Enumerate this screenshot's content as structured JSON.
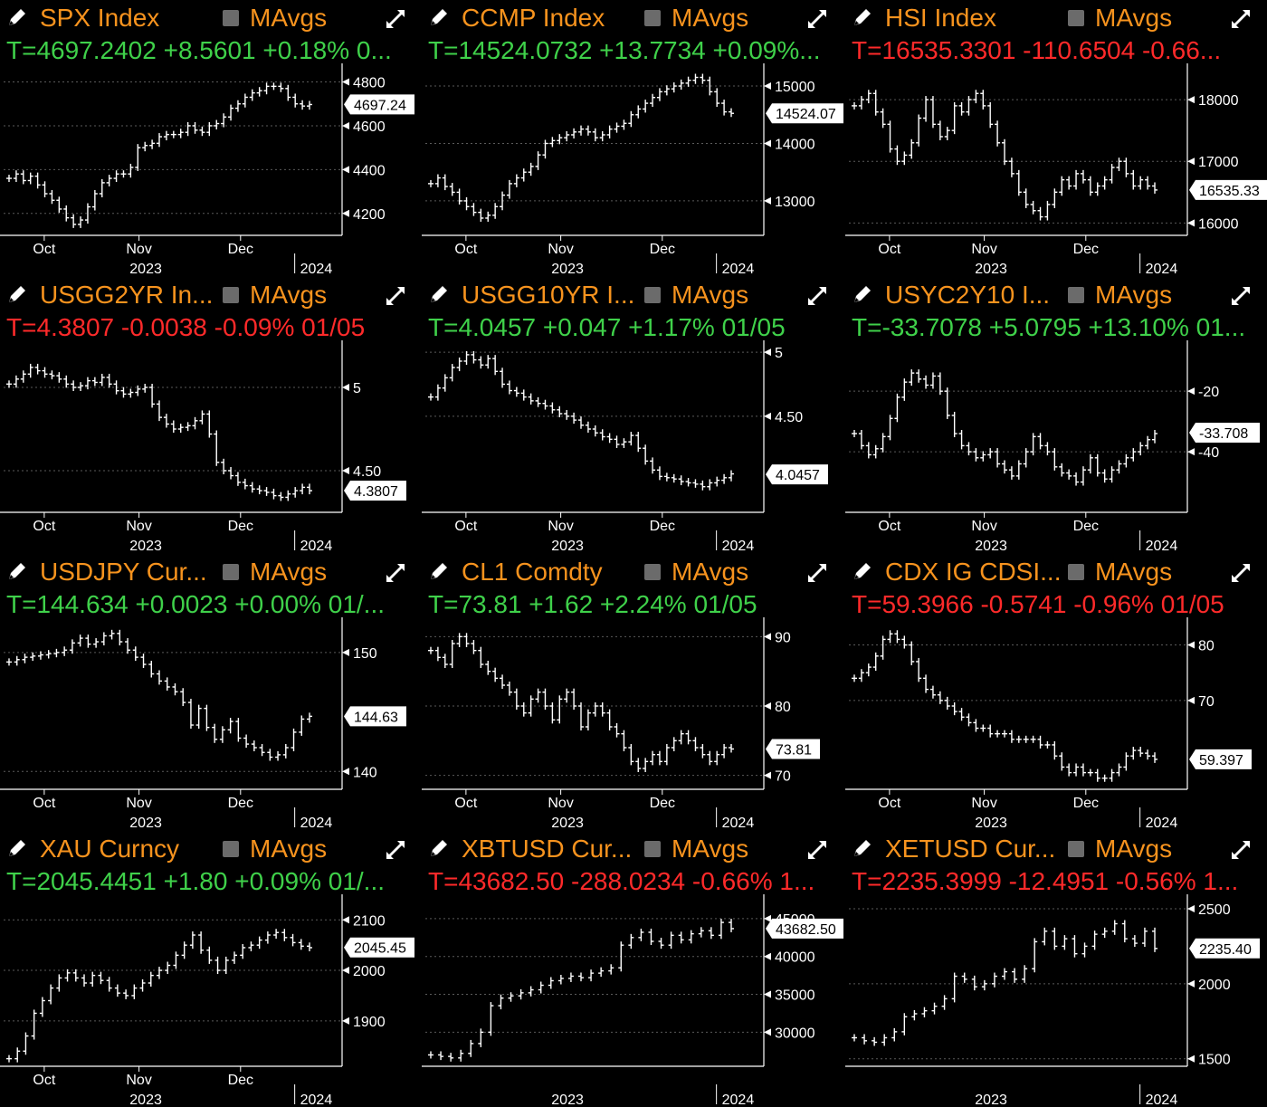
{
  "colors": {
    "up": "#3fd14a",
    "down": "#ff2a2a",
    "ticker": "#f7931e",
    "line": "#ffffff",
    "background": "#000000"
  },
  "icons": {
    "edit": "pencil-icon",
    "toggle": "checkbox-icon",
    "expand": "expand-icon"
  },
  "panels": [
    {
      "ticker": "SPX Index",
      "mavgs": "MAvgs",
      "quote": "T=4697.2402 +8.5601 +0.18% 0...",
      "direction": "up",
      "chart_data": {
        "type": "line",
        "yticks": [
          4200,
          4400,
          4600,
          4800
        ],
        "ylim": [
          4100,
          4860
        ],
        "last_label": "4697.24",
        "last_value": 4697.24,
        "xticks": [
          "Oct",
          "Nov",
          "Dec"
        ],
        "year_labels": [
          "2023",
          "2024"
        ],
        "x_kind": "months",
        "y": [
          4360,
          4380,
          4350,
          4370,
          4330,
          4290,
          4260,
          4220,
          4180,
          4150,
          4170,
          4230,
          4290,
          4340,
          4360,
          4380,
          4380,
          4410,
          4500,
          4510,
          4520,
          4550,
          4560,
          4560,
          4570,
          4600,
          4580,
          4570,
          4600,
          4610,
          4640,
          4680,
          4700,
          4730,
          4750,
          4760,
          4780,
          4780,
          4770,
          4730,
          4700,
          4690,
          4697
        ]
      }
    },
    {
      "ticker": "CCMP Index",
      "mavgs": "MAvgs",
      "quote": "T=14524.0732 +13.7734 +0.09%...",
      "direction": "up",
      "chart_data": {
        "type": "line",
        "yticks": [
          13000,
          14000,
          15000
        ],
        "ylim": [
          12400,
          15300
        ],
        "last_label": "14524.07",
        "last_value": 14524.07,
        "xticks": [
          "Oct",
          "Nov",
          "Dec"
        ],
        "year_labels": [
          "2023",
          "2024"
        ],
        "x_kind": "months",
        "y": [
          13300,
          13400,
          13250,
          13150,
          13000,
          12900,
          12800,
          12700,
          12750,
          12900,
          13100,
          13300,
          13400,
          13500,
          13600,
          13800,
          14000,
          14050,
          14100,
          14150,
          14200,
          14250,
          14200,
          14100,
          14150,
          14250,
          14300,
          14350,
          14500,
          14600,
          14700,
          14800,
          14900,
          14950,
          15000,
          15050,
          15100,
          15150,
          15100,
          14900,
          14700,
          14550,
          14524
        ]
      }
    },
    {
      "ticker": "HSI Index",
      "mavgs": "MAvgs",
      "quote": "T=16535.3301 -110.6504 -0.66...",
      "direction": "down",
      "chart_data": {
        "type": "line",
        "yticks": [
          16000,
          17000,
          18000
        ],
        "ylim": [
          15800,
          18500
        ],
        "last_label": "16535.33",
        "last_value": 16535.33,
        "xticks": [
          "Oct",
          "Nov",
          "Dec"
        ],
        "year_labels": [
          "2023",
          "2024"
        ],
        "x_kind": "months",
        "y": [
          17900,
          18000,
          18100,
          17800,
          17600,
          17200,
          17000,
          17100,
          17300,
          17700,
          18000,
          17600,
          17400,
          17500,
          17900,
          17800,
          18000,
          18100,
          17900,
          17600,
          17300,
          17000,
          16800,
          16500,
          16300,
          16200,
          16100,
          16300,
          16500,
          16700,
          16600,
          16800,
          16700,
          16500,
          16600,
          16700,
          16900,
          17000,
          16800,
          16600,
          16700,
          16600,
          16535
        ]
      }
    },
    {
      "ticker": "USGG2YR In...",
      "mavgs": "MAvgs",
      "quote": "T=4.3807 -0.0038 -0.09% 01/05",
      "direction": "down",
      "chart_data": {
        "type": "line",
        "yticks": [
          4.5,
          5.0
        ],
        "ylim": [
          4.25,
          5.25
        ],
        "last_label": "4.3807",
        "last_value": 4.3807,
        "xticks": [
          "Oct",
          "Nov",
          "Dec"
        ],
        "year_labels": [
          "2023",
          "2024"
        ],
        "x_kind": "months",
        "y": [
          5.02,
          5.05,
          5.08,
          5.12,
          5.1,
          5.08,
          5.07,
          5.05,
          5.02,
          5.0,
          5.01,
          5.04,
          5.03,
          5.06,
          5.02,
          4.98,
          4.96,
          4.97,
          4.99,
          5.0,
          4.9,
          4.82,
          4.78,
          4.75,
          4.76,
          4.77,
          4.8,
          4.84,
          4.72,
          4.55,
          4.5,
          4.47,
          4.43,
          4.41,
          4.39,
          4.38,
          4.37,
          4.35,
          4.34,
          4.36,
          4.38,
          4.4,
          4.38
        ]
      }
    },
    {
      "ticker": "USGG10YR I...",
      "mavgs": "MAvgs",
      "quote": "T=4.0457 +0.047 +1.17% 01/05",
      "direction": "up",
      "chart_data": {
        "type": "line",
        "yticks": [
          4.5,
          5.0
        ],
        "ylim": [
          3.75,
          5.05
        ],
        "last_label": "4.0457",
        "last_value": 4.0457,
        "xticks": [
          "Oct",
          "Nov",
          "Dec"
        ],
        "year_labels": [
          "2023",
          "2024"
        ],
        "x_kind": "months",
        "y": [
          4.65,
          4.72,
          4.8,
          4.88,
          4.93,
          4.98,
          4.94,
          4.9,
          4.95,
          4.85,
          4.75,
          4.7,
          4.68,
          4.65,
          4.62,
          4.6,
          4.58,
          4.55,
          4.52,
          4.5,
          4.47,
          4.43,
          4.4,
          4.37,
          4.34,
          4.32,
          4.28,
          4.3,
          4.35,
          4.25,
          4.15,
          4.08,
          4.03,
          4.02,
          4.01,
          3.99,
          3.98,
          3.97,
          3.95,
          3.98,
          4.0,
          4.02,
          4.05
        ]
      }
    },
    {
      "ticker": "USYC2Y10 I...",
      "mavgs": "MAvgs",
      "quote": "T=-33.7078 +5.0795 +13.10% 01...",
      "direction": "up",
      "chart_data": {
        "type": "line",
        "yticks": [
          -40,
          -20
        ],
        "ylim": [
          -60,
          -5
        ],
        "last_label": "-33.708",
        "last_value": -33.708,
        "xticks": [
          "Oct",
          "Nov",
          "Dec"
        ],
        "year_labels": [
          "2023",
          "2024"
        ],
        "x_kind": "months",
        "y": [
          -34,
          -38,
          -41,
          -39,
          -35,
          -29,
          -22,
          -17,
          -14,
          -16,
          -18,
          -15,
          -20,
          -28,
          -34,
          -38,
          -40,
          -42,
          -41,
          -40,
          -44,
          -46,
          -48,
          -44,
          -40,
          -35,
          -38,
          -40,
          -45,
          -47,
          -48,
          -50,
          -46,
          -42,
          -47,
          -49,
          -46,
          -44,
          -42,
          -40,
          -38,
          -36,
          -34
        ]
      }
    },
    {
      "ticker": "USDJPY Cur...",
      "mavgs": "MAvgs",
      "quote": "T=144.634 +0.0023 +0.00% 01/...",
      "direction": "up",
      "chart_data": {
        "type": "line",
        "yticks": [
          140,
          150
        ],
        "ylim": [
          138.5,
          152.5
        ],
        "last_label": "144.63",
        "last_value": 144.63,
        "xticks": [
          "Oct",
          "Nov",
          "Dec"
        ],
        "year_labels": [
          "2023",
          "2024"
        ],
        "x_kind": "months",
        "y": [
          149.2,
          149.4,
          149.6,
          149.7,
          149.8,
          149.9,
          150.0,
          150.2,
          150.8,
          151.2,
          150.7,
          150.9,
          151.4,
          151.6,
          150.9,
          150.2,
          149.6,
          149.0,
          148.2,
          147.6,
          147.1,
          146.7,
          145.8,
          143.9,
          145.3,
          143.7,
          142.7,
          143.5,
          144.2,
          142.8,
          142.3,
          142.0,
          141.6,
          141.2,
          141.4,
          142.0,
          143.3,
          144.4,
          144.634
        ]
      }
    },
    {
      "ticker": "CL1 Comdty",
      "mavgs": "MAvgs",
      "quote": "T=73.81 +1.62 +2.24% 01/05",
      "direction": "up",
      "chart_data": {
        "type": "line",
        "yticks": [
          70,
          80,
          90
        ],
        "ylim": [
          68,
          92
        ],
        "last_label": "73.81",
        "last_value": 73.81,
        "xticks": [
          "Oct",
          "Nov",
          "Dec"
        ],
        "year_labels": [
          "2023",
          "2024"
        ],
        "x_kind": "months",
        "y": [
          88,
          87,
          86,
          89,
          90,
          89,
          88,
          86,
          85,
          84,
          83,
          82,
          80,
          79,
          81,
          82,
          80,
          78,
          81,
          82,
          80,
          77,
          79,
          80,
          79,
          77,
          76,
          74,
          72,
          71,
          72,
          73,
          72,
          74,
          75,
          76,
          75,
          74,
          73,
          72,
          73,
          74,
          73.81
        ]
      }
    },
    {
      "ticker": "CDX IG CDSI...",
      "mavgs": "MAvgs",
      "quote": "T=59.3966 -0.5741 -0.96% 01/05",
      "direction": "down",
      "chart_data": {
        "type": "line",
        "yticks": [
          70,
          80
        ],
        "ylim": [
          54,
          84
        ],
        "last_label": "59.397",
        "last_value": 59.397,
        "xticks": [
          "Oct",
          "Nov",
          "Dec"
        ],
        "year_labels": [
          "2023",
          "2024"
        ],
        "x_kind": "months",
        "y": [
          74,
          75,
          76,
          78,
          81,
          82,
          81,
          80,
          77,
          74,
          72,
          71,
          70,
          69,
          68,
          67,
          66,
          65,
          65,
          64,
          64,
          64,
          63,
          63,
          63,
          63,
          62,
          62,
          60,
          58,
          57,
          58,
          57,
          57,
          56,
          56,
          57,
          58,
          60,
          61,
          60.5,
          60,
          59.4
        ]
      }
    },
    {
      "ticker": "XAU Curncy",
      "mavgs": "MAvgs",
      "quote": "T=2045.4451 +1.80 +0.09% 01/...",
      "direction": "up",
      "chart_data": {
        "type": "line",
        "yticks": [
          1900,
          2000,
          2100
        ],
        "ylim": [
          1810,
          2140
        ],
        "last_label": "2045.45",
        "last_value": 2045.45,
        "xticks": [
          "Oct",
          "Nov",
          "Dec"
        ],
        "year_labels": [
          "2023",
          "2024"
        ],
        "x_kind": "months",
        "y": [
          1825,
          1840,
          1870,
          1915,
          1940,
          1965,
          1985,
          1995,
          1985,
          1975,
          1990,
          1980,
          1965,
          1955,
          1950,
          1965,
          1975,
          1990,
          2000,
          2010,
          2030,
          2050,
          2070,
          2040,
          2020,
          2000,
          2020,
          2030,
          2045,
          2050,
          2060,
          2070,
          2075,
          2065,
          2055,
          2048,
          2045
        ]
      }
    },
    {
      "ticker": "XBTUSD Cur...",
      "mavgs": "MAvgs",
      "quote": "T=43682.50 -288.0234 -0.66% 1...",
      "direction": "down",
      "chart_data": {
        "type": "line",
        "yticks": [
          30000,
          35000,
          40000,
          45000
        ],
        "ylim": [
          25500,
          47500
        ],
        "last_label": "43682.50",
        "last_value": 43682.5,
        "xticks": [],
        "year_labels": [
          "2023",
          "2024"
        ],
        "x_kind": "years",
        "y": [
          27000,
          26800,
          26600,
          27200,
          28500,
          30000,
          33500,
          34500,
          34800,
          35200,
          35600,
          36200,
          36800,
          37100,
          37400,
          37200,
          37800,
          38100,
          38500,
          41500,
          42500,
          43200,
          42000,
          41500,
          42800,
          42200,
          43000,
          43400,
          42800,
          44500,
          43682.5
        ]
      }
    },
    {
      "ticker": "XETUSD Cur...",
      "mavgs": "MAvgs",
      "quote": "T=2235.3999 -12.4951 -0.56% 1...",
      "direction": "down",
      "chart_data": {
        "type": "line",
        "yticks": [
          1500,
          2000,
          2500
        ],
        "ylim": [
          1450,
          2560
        ],
        "last_label": "2235.40",
        "last_value": 2235.4,
        "xticks": [],
        "year_labels": [
          "2023",
          "2024"
        ],
        "x_kind": "years",
        "y": [
          1640,
          1620,
          1610,
          1640,
          1680,
          1780,
          1800,
          1820,
          1850,
          1900,
          2050,
          2030,
          1980,
          2000,
          2050,
          2080,
          2030,
          2100,
          2280,
          2350,
          2250,
          2300,
          2200,
          2250,
          2330,
          2350,
          2400,
          2300,
          2270,
          2350,
          2235
        ]
      }
    }
  ]
}
